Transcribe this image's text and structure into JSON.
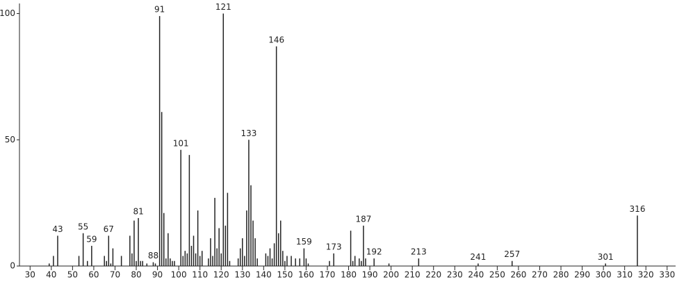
{
  "chart_data": {
    "type": "stem",
    "color": "#222222",
    "xlim": [
      25,
      334
    ],
    "ylim": [
      0,
      104
    ],
    "xticks": [
      30,
      40,
      50,
      60,
      70,
      80,
      90,
      100,
      110,
      120,
      130,
      140,
      150,
      160,
      170,
      180,
      190,
      200,
      210,
      220,
      230,
      240,
      250,
      260,
      270,
      280,
      290,
      300,
      310,
      320,
      330
    ],
    "yticks": [
      0,
      50,
      100
    ],
    "x": [
      39,
      41,
      43,
      53,
      55,
      57,
      59,
      65,
      66,
      67,
      68,
      69,
      73,
      77,
      78,
      79,
      80,
      81,
      82,
      83,
      85,
      88,
      89,
      91,
      92,
      93,
      94,
      95,
      96,
      97,
      98,
      101,
      102,
      103,
      104,
      105,
      106,
      107,
      108,
      109,
      110,
      111,
      114,
      115,
      116,
      117,
      118,
      119,
      120,
      121,
      122,
      123,
      124,
      128,
      129,
      130,
      131,
      132,
      133,
      134,
      135,
      136,
      137,
      141,
      142,
      143,
      144,
      145,
      146,
      147,
      148,
      149,
      150,
      151,
      153,
      155,
      157,
      159,
      160,
      161,
      171,
      173,
      181,
      182,
      183,
      185,
      186,
      187,
      188,
      192,
      199,
      213,
      241,
      257,
      301,
      316
    ],
    "values": [
      1,
      4,
      12,
      4,
      13,
      2,
      8,
      4,
      2,
      12,
      1,
      7,
      4,
      12,
      5,
      18,
      2,
      19,
      2,
      2,
      1,
      1.5,
      1,
      99,
      61,
      21,
      3,
      13,
      3,
      2,
      2,
      46,
      4,
      6,
      5,
      44,
      8,
      12,
      5,
      22,
      4,
      6,
      3,
      11,
      4,
      27,
      7,
      15,
      5,
      100,
      16,
      29,
      2,
      3,
      7,
      11,
      4,
      22,
      50,
      32,
      18,
      11,
      3,
      5,
      4,
      7,
      3,
      9,
      87,
      13,
      18,
      6,
      2,
      4,
      4,
      3,
      3,
      7,
      3,
      1,
      2,
      5,
      14,
      2,
      4,
      3,
      2,
      16,
      3,
      3,
      1,
      3,
      1,
      2,
      1,
      20
    ],
    "peak_labels": [
      null,
      null,
      "43",
      null,
      "55",
      null,
      "59",
      null,
      null,
      "67",
      null,
      null,
      null,
      null,
      null,
      null,
      null,
      "81",
      null,
      null,
      null,
      "88",
      null,
      "91",
      null,
      null,
      null,
      null,
      null,
      null,
      null,
      "101",
      null,
      null,
      null,
      null,
      null,
      null,
      null,
      null,
      null,
      null,
      null,
      null,
      null,
      null,
      null,
      null,
      null,
      "121",
      null,
      null,
      null,
      null,
      null,
      null,
      null,
      null,
      "133",
      null,
      null,
      null,
      null,
      null,
      null,
      null,
      null,
      null,
      "146",
      null,
      null,
      null,
      null,
      null,
      null,
      null,
      null,
      "159",
      null,
      null,
      null,
      "173",
      null,
      null,
      null,
      null,
      null,
      "187",
      null,
      "192",
      null,
      "213",
      "241",
      "257",
      "301",
      "316"
    ]
  }
}
